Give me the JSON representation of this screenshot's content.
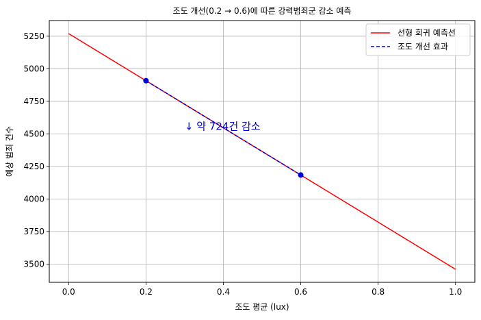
{
  "chart_data": {
    "type": "line",
    "title": "조도 개선(0.2 → 0.6)에 따른 강력범죄군 감소 예측",
    "xlabel": "조도 평균 (lux)",
    "ylabel": "예상 범죄 건수",
    "xlim": [
      -0.05,
      1.05
    ],
    "ylim": [
      3360,
      5370
    ],
    "xticks": [
      0.0,
      0.2,
      0.4,
      0.6,
      0.8,
      1.0
    ],
    "xtick_labels": [
      "0.0",
      "0.2",
      "0.4",
      "0.6",
      "0.8",
      "1.0"
    ],
    "yticks": [
      3500,
      3750,
      4000,
      4250,
      4500,
      4750,
      5000,
      5250
    ],
    "ytick_labels": [
      "3500",
      "3750",
      "4000",
      "4250",
      "4500",
      "4750",
      "5000",
      "5250"
    ],
    "grid": true,
    "legend_position": "top-right",
    "series": [
      {
        "name": "선형 회귀 예측선",
        "color": "#ff0000",
        "style": "solid",
        "x": [
          0.0,
          1.0
        ],
        "y": [
          5270,
          3460
        ]
      },
      {
        "name": "조도 개선 효과",
        "color": "#0000cc",
        "style": "dashed",
        "x": [
          0.2,
          0.6
        ],
        "y": [
          4908,
          4184
        ]
      }
    ],
    "points": {
      "color": "#0000cc",
      "x": [
        0.2,
        0.6
      ],
      "y": [
        4908,
        4184
      ]
    },
    "annotation": {
      "text": "↓ 약 724건 감소",
      "x": 0.3,
      "y": 4530,
      "color": "#0000cc"
    }
  }
}
